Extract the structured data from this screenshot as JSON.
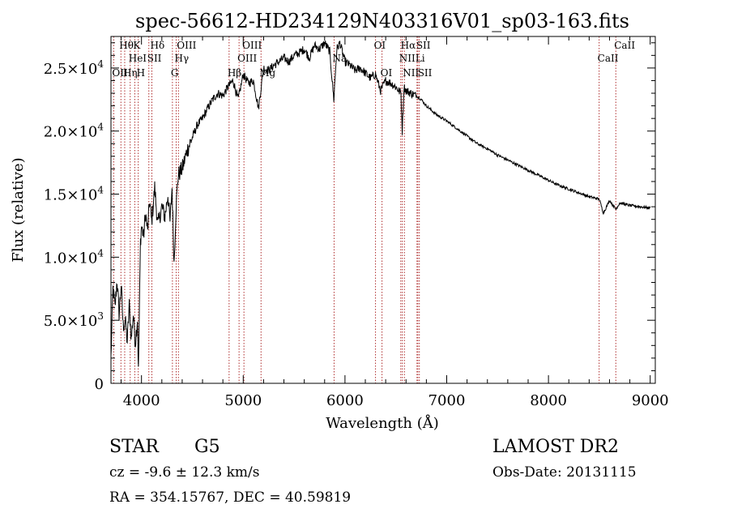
{
  "chart_data": {
    "type": "line",
    "title": "spec-56612-HD234129N403316V01_sp03-163.fits",
    "xlabel": "Wavelength (Å)",
    "ylabel": "Flux (relative)",
    "xlim": [
      3700,
      9050
    ],
    "ylim": [
      0,
      27500
    ],
    "x_ticks": [
      4000,
      5000,
      6000,
      7000,
      8000,
      9000
    ],
    "x_tick_labels": [
      "4000",
      "5000",
      "6000",
      "7000",
      "8000",
      "9000"
    ],
    "y_ticks": [
      {
        "value": 0,
        "mant": "0",
        "exp": ""
      },
      {
        "value": 5000,
        "mant": "5.0×10",
        "exp": "3"
      },
      {
        "value": 10000,
        "mant": "1.0×10",
        "exp": "4"
      },
      {
        "value": 15000,
        "mant": "1.5×10",
        "exp": "4"
      },
      {
        "value": 20000,
        "mant": "2.0×10",
        "exp": "4"
      },
      {
        "value": 25000,
        "mant": "2.5×10",
        "exp": "4"
      }
    ],
    "series": [
      {
        "x": [
          3700,
          3720,
          3740,
          3760,
          3780,
          3800,
          3820,
          3840,
          3860,
          3880,
          3900,
          3920,
          3940,
          3960,
          3970,
          3990,
          4000,
          4020,
          4040,
          4060,
          4080,
          4100,
          4130,
          4160,
          4200,
          4230,
          4260,
          4280,
          4300,
          4320,
          4340,
          4360,
          4400,
          4450,
          4500,
          4550,
          4600,
          4650,
          4700,
          4750,
          4800,
          4850,
          4900,
          4950,
          5000,
          5050,
          5100,
          5150,
          5200,
          5250,
          5300,
          5350,
          5400,
          5450,
          5500,
          5550,
          5600,
          5650,
          5700,
          5750,
          5800,
          5850,
          5890,
          5920,
          5950,
          6000,
          6050,
          6100,
          6150,
          6200,
          6250,
          6300,
          6350,
          6400,
          6450,
          6500,
          6550,
          6563,
          6580,
          6600,
          6650,
          6700,
          6750,
          6800,
          6900,
          7000,
          7100,
          7200,
          7300,
          7400,
          7500,
          7600,
          7700,
          7800,
          7900,
          8000,
          8100,
          8200,
          8300,
          8400,
          8500,
          8540,
          8600,
          8662,
          8700,
          8800,
          8900,
          9000
        ],
        "y": [
          2000,
          7500,
          6000,
          8200,
          5500,
          7800,
          4500,
          5000,
          3300,
          6200,
          3500,
          5500,
          3200,
          5200,
          900,
          11200,
          12500,
          11600,
          13500,
          12000,
          14500,
          12800,
          15500,
          12500,
          14000,
          13200,
          15000,
          12800,
          15500,
          9500,
          14000,
          16500,
          17000,
          18500,
          19500,
          20500,
          21000,
          21800,
          22500,
          23000,
          22800,
          23500,
          24000,
          22500,
          24500,
          23800,
          24000,
          21800,
          25000,
          24800,
          25200,
          25500,
          25800,
          25500,
          26000,
          26200,
          26500,
          25800,
          26800,
          26500,
          27000,
          26300,
          22500,
          26500,
          27000,
          25500,
          25200,
          24800,
          25000,
          24600,
          24200,
          24500,
          23200,
          24000,
          23800,
          23500,
          23000,
          20000,
          23500,
          23200,
          23000,
          22800,
          22500,
          22000,
          21300,
          20800,
          20200,
          19600,
          19000,
          18600,
          18100,
          17700,
          17300,
          16900,
          16500,
          16100,
          15700,
          15400,
          15100,
          14800,
          14600,
          13500,
          14500,
          13800,
          14300,
          14100,
          14000,
          13900
        ]
      }
    ],
    "spectral_lines": [
      {
        "wavelength": 3727,
        "label": "OII",
        "row": 3
      },
      {
        "wavelength": 3798,
        "label": "Hθ",
        "row": 1
      },
      {
        "wavelength": 3835,
        "label": "Hη",
        "row": 3
      },
      {
        "wavelength": 3889,
        "label": "HeI",
        "row": 2
      },
      {
        "wavelength": 3934,
        "label": "K",
        "row": 1
      },
      {
        "wavelength": 3968,
        "label": "H",
        "row": 3
      },
      {
        "wavelength": 4072,
        "label": "SII",
        "row": 2
      },
      {
        "wavelength": 4102,
        "label": "Hδ",
        "row": 1
      },
      {
        "wavelength": 4304,
        "label": "G",
        "row": 3
      },
      {
        "wavelength": 4341,
        "label": "Hγ",
        "row": 2
      },
      {
        "wavelength": 4363,
        "label": "OIII",
        "row": 1
      },
      {
        "wavelength": 4861,
        "label": "Hβ",
        "row": 3
      },
      {
        "wavelength": 4959,
        "label": "OIII",
        "row": 2
      },
      {
        "wavelength": 5007,
        "label": "OIII",
        "row": 1
      },
      {
        "wavelength": 5175,
        "label": "Mg",
        "row": 3
      },
      {
        "wavelength": 5893,
        "label": "Na",
        "row": 2
      },
      {
        "wavelength": 6300,
        "label": "OI",
        "row": 1
      },
      {
        "wavelength": 6364,
        "label": "OI",
        "row": 3
      },
      {
        "wavelength": 6548,
        "label": "NII",
        "row": 2
      },
      {
        "wavelength": 6563,
        "label": "Hα",
        "row": 1
      },
      {
        "wavelength": 6584,
        "label": "NII",
        "row": 3
      },
      {
        "wavelength": 6708,
        "label": "Li",
        "row": 2
      },
      {
        "wavelength": 6716,
        "label": "SII",
        "row": 1
      },
      {
        "wavelength": 6731,
        "label": "SII",
        "row": 3
      },
      {
        "wavelength": 8498,
        "label": "CaII",
        "row": 2
      },
      {
        "wavelength": 8662,
        "label": "CaII",
        "row": 1
      }
    ]
  },
  "info": {
    "object_class": "STAR",
    "subclass": "G5",
    "redshift": "cz = -9.6 ± 12.3 km/s",
    "coordinates": "RA = 354.15767, DEC =  40.59819",
    "survey": "LAMOST DR2",
    "obs_date": "Obs-Date: 20131115"
  }
}
